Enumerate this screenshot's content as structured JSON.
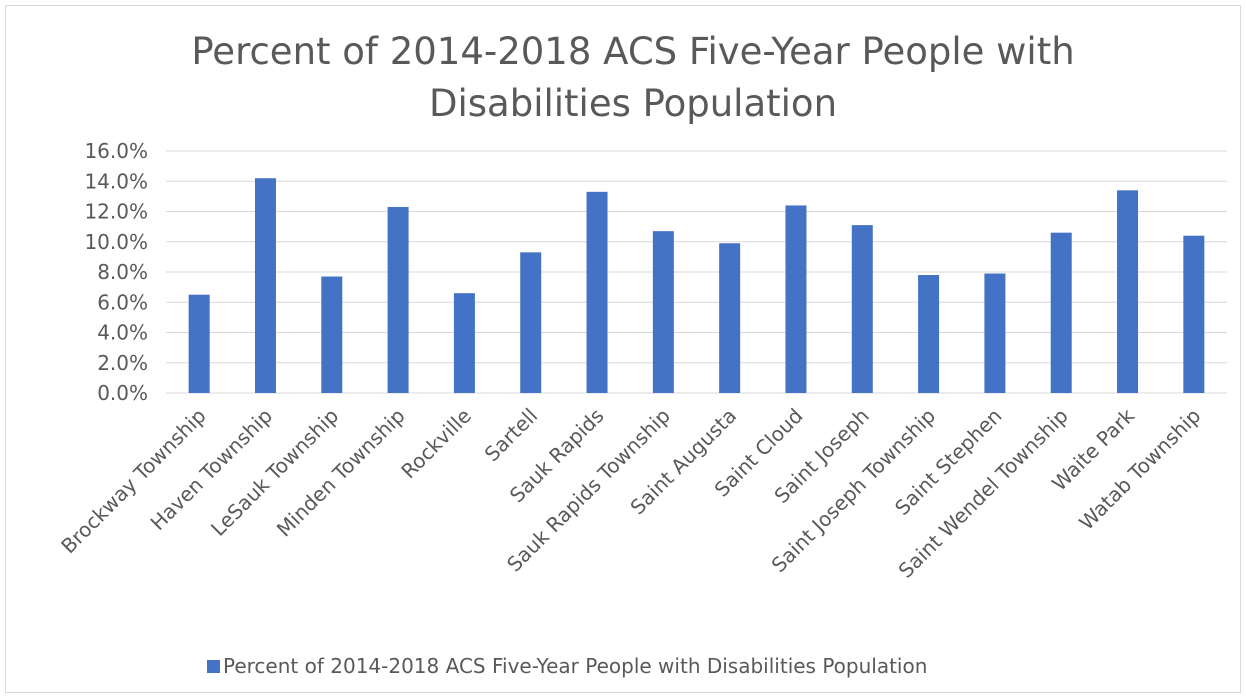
{
  "chart_data": {
    "type": "bar",
    "title": "Percent of 2014-2018 ACS Five-Year People with Disabilities Population",
    "title_lines": [
      "Percent of 2014-2018 ACS Five-Year People with",
      "Disabilities Population"
    ],
    "categories": [
      "Brockway Township",
      "Haven Township",
      "LeSauk Township",
      "Minden Township",
      "Rockville",
      "Sartell",
      "Sauk Rapids",
      "Sauk Rapids Township",
      "Saint Augusta",
      "Saint Cloud",
      "Saint Joseph",
      "Saint Joseph Township",
      "Saint Stephen",
      "Saint Wendel Township",
      "Waite Park",
      "Watab Township"
    ],
    "series": [
      {
        "name": "Percent of 2014-2018 ACS Five-Year People with Disabilities Population",
        "values": [
          6.5,
          14.2,
          7.7,
          12.3,
          6.6,
          9.3,
          13.3,
          10.7,
          9.9,
          12.4,
          11.1,
          7.8,
          7.9,
          10.6,
          13.4,
          10.4
        ],
        "color": "#4472c4"
      }
    ],
    "y_ticks": [
      "0.0%",
      "2.0%",
      "4.0%",
      "6.0%",
      "8.0%",
      "10.0%",
      "12.0%",
      "14.0%",
      "16.0%"
    ],
    "ylim": [
      0,
      16
    ],
    "y_unit": "percent",
    "xlabel": "",
    "ylabel": "",
    "grid": true,
    "legend_position": "bottom",
    "colors": {
      "bar": "#4472c4",
      "gridline": "#d9d9d9",
      "text": "#595959",
      "border": "#d9d9d9"
    }
  }
}
